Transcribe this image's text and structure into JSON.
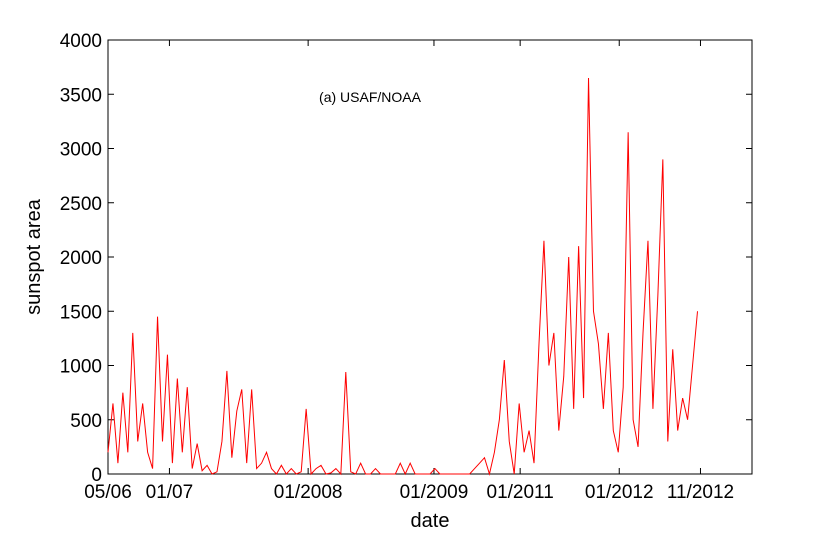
{
  "chart_data": {
    "type": "line",
    "annotation": "(a) USAF/NOAA",
    "xlabel": "date",
    "ylabel": "sunspot area",
    "x": [
      0,
      5,
      10,
      15,
      20,
      25,
      30,
      35,
      40,
      45,
      50,
      55,
      60,
      65,
      70,
      75,
      80,
      85,
      90,
      95,
      100,
      105,
      110,
      115,
      120,
      125,
      130,
      135,
      140,
      145,
      150,
      155,
      160,
      165,
      170,
      175,
      180,
      185,
      190,
      195,
      200,
      205,
      210,
      215,
      220,
      225,
      230,
      235,
      240,
      245,
      250,
      255,
      260,
      265,
      270,
      275,
      280,
      285,
      290,
      295,
      300,
      305,
      310,
      315,
      320,
      325,
      330,
      335,
      340,
      345,
      350,
      355,
      360,
      365,
      370,
      375,
      380,
      385,
      390,
      395,
      400,
      405,
      410,
      415,
      420,
      425,
      430,
      435,
      440,
      445,
      450,
      455,
      460,
      465,
      470,
      475,
      480,
      485,
      490,
      495,
      500,
      505,
      510,
      515,
      520,
      525,
      530,
      535,
      540,
      545,
      550,
      555,
      560,
      565,
      570,
      575,
      580,
      585,
      590,
      595
    ],
    "series": [
      {
        "name": "USAF/NOAA",
        "color": "#ff0000",
        "values": [
          200,
          650,
          100,
          750,
          200,
          1300,
          300,
          650,
          200,
          50,
          1450,
          300,
          1100,
          100,
          880,
          200,
          800,
          50,
          280,
          30,
          80,
          0,
          20,
          300,
          950,
          150,
          580,
          780,
          100,
          780,
          50,
          100,
          200,
          50,
          0,
          80,
          0,
          50,
          0,
          20,
          600,
          0,
          50,
          80,
          0,
          10,
          50,
          0,
          940,
          20,
          0,
          100,
          0,
          0,
          50,
          0,
          0,
          0,
          0,
          100,
          0,
          100,
          0,
          0,
          0,
          0,
          50,
          0,
          0,
          0,
          0,
          0,
          0,
          0,
          50,
          100,
          150,
          0,
          200,
          500,
          1050,
          300,
          0,
          650,
          200,
          400,
          100,
          1200,
          2150,
          1000,
          1300,
          400,
          900,
          2000,
          600,
          2100,
          700,
          3650,
          1500,
          1200,
          600,
          1300,
          400,
          200,
          800,
          3150,
          500,
          250,
          1300,
          2150,
          600,
          1650,
          2900,
          300,
          1150,
          400,
          700,
          500,
          1000,
          1500
        ]
      }
    ],
    "xlim": [
      0,
      650
    ],
    "xticks": [
      {
        "value": 0,
        "label": "05/06"
      },
      {
        "value": 62,
        "label": "01/07"
      },
      {
        "value": 202,
        "label": "01/2008"
      },
      {
        "value": 329,
        "label": "01/2009"
      },
      {
        "value": 416,
        "label": "01/2011"
      },
      {
        "value": 516,
        "label": "01/2012"
      },
      {
        "value": 598,
        "label": "11/2012"
      }
    ],
    "ylim": [
      0,
      4000
    ],
    "yticks": [
      0,
      500,
      1000,
      1500,
      2000,
      2500,
      3000,
      3500,
      4000
    ],
    "grid": false
  }
}
